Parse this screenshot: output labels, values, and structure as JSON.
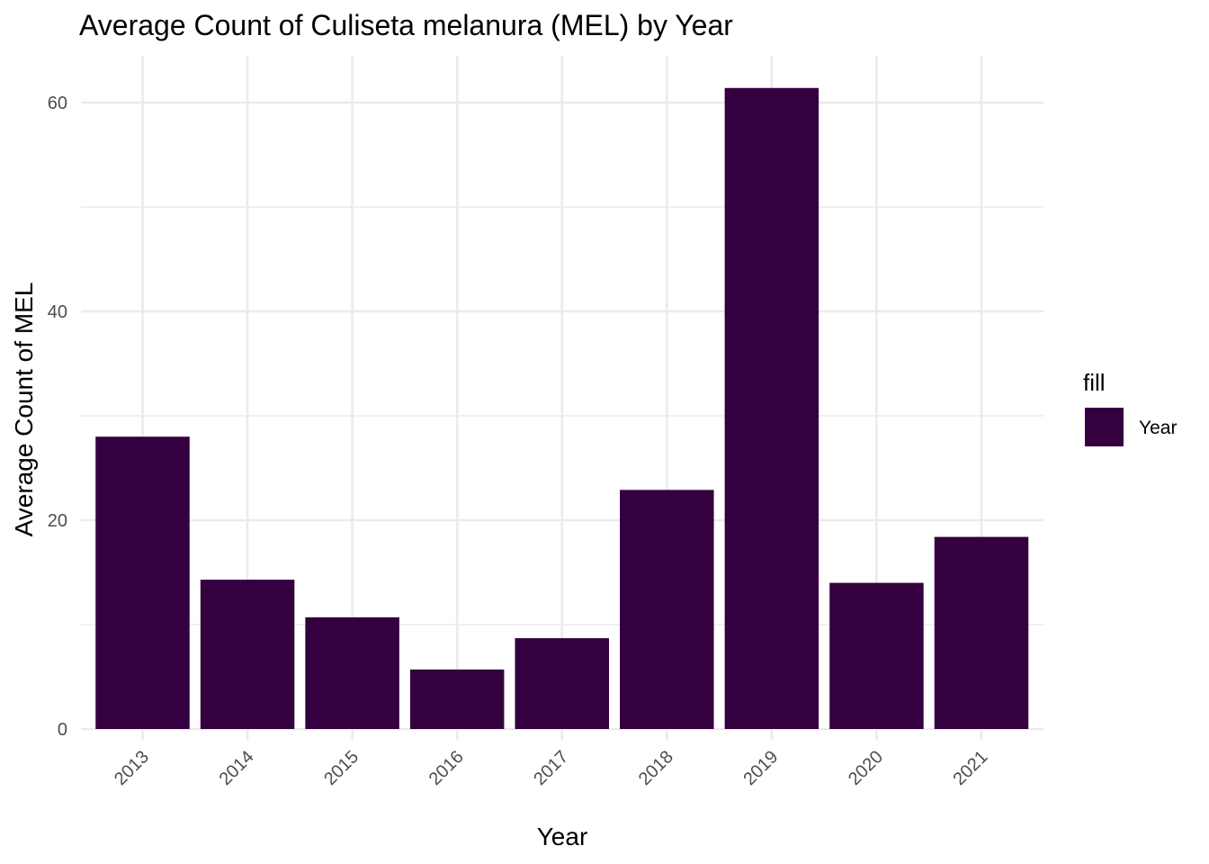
{
  "chart_data": {
    "type": "bar",
    "title": "Average Count of Culiseta melanura (MEL) by Year",
    "xlabel": "Year",
    "ylabel": "Average Count of MEL",
    "categories": [
      "2013",
      "2014",
      "2015",
      "2016",
      "2017",
      "2018",
      "2019",
      "2020",
      "2021"
    ],
    "series": [
      {
        "name": "Year",
        "values": [
          28.0,
          14.3,
          10.7,
          5.7,
          8.7,
          22.9,
          61.4,
          14.0,
          18.4
        ]
      }
    ],
    "ylim": [
      0,
      63
    ],
    "yticks": [
      0,
      20,
      40,
      60
    ],
    "grid": true,
    "bar_color": "#35003f",
    "legend": {
      "title": "fill",
      "position": "right",
      "entries": [
        "Year"
      ]
    }
  }
}
